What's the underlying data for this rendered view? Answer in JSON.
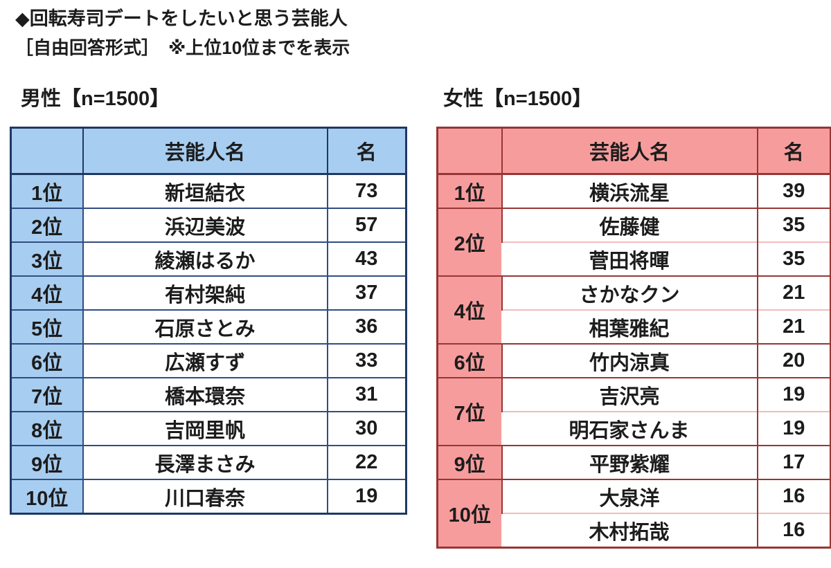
{
  "title": "◆回転寿司デートをしたいと思う芸能人",
  "subtitle": "［自由回答形式］　※上位10位までを表示",
  "colors": {
    "male_fill": "#a7cdf0",
    "male_border": "#1f3864",
    "male_line": "#2f4d80",
    "female_fill": "#f79c9c",
    "female_border": "#963634",
    "female_light_separator": "#f0bcbc",
    "text": "#1c1c1c",
    "background": "#ffffff"
  },
  "tables": [
    {
      "id": "male",
      "label": "男性【n=1500】",
      "columns": {
        "rank": "",
        "name": "芸能人名",
        "count": "名"
      },
      "rows": [
        {
          "rank": "1位",
          "entries": [
            {
              "name": "新垣結衣",
              "count": "73"
            }
          ]
        },
        {
          "rank": "2位",
          "entries": [
            {
              "name": "浜辺美波",
              "count": "57"
            }
          ]
        },
        {
          "rank": "3位",
          "entries": [
            {
              "name": "綾瀬はるか",
              "count": "43"
            }
          ]
        },
        {
          "rank": "4位",
          "entries": [
            {
              "name": "有村架純",
              "count": "37"
            }
          ]
        },
        {
          "rank": "5位",
          "entries": [
            {
              "name": "石原さとみ",
              "count": "36"
            }
          ]
        },
        {
          "rank": "6位",
          "entries": [
            {
              "name": "広瀬すず",
              "count": "33"
            }
          ]
        },
        {
          "rank": "7位",
          "entries": [
            {
              "name": "橋本環奈",
              "count": "31"
            }
          ]
        },
        {
          "rank": "8位",
          "entries": [
            {
              "name": "吉岡里帆",
              "count": "30"
            }
          ]
        },
        {
          "rank": "9位",
          "entries": [
            {
              "name": "長澤まさみ",
              "count": "22"
            }
          ]
        },
        {
          "rank": "10位",
          "entries": [
            {
              "name": "川口春奈",
              "count": "19"
            }
          ]
        }
      ]
    },
    {
      "id": "female",
      "label": "女性【n=1500】",
      "columns": {
        "rank": "",
        "name": "芸能人名",
        "count": "名"
      },
      "rows": [
        {
          "rank": "1位",
          "entries": [
            {
              "name": "横浜流星",
              "count": "39"
            }
          ]
        },
        {
          "rank": "2位",
          "entries": [
            {
              "name": "佐藤健",
              "count": "35"
            },
            {
              "name": "菅田将暉",
              "count": "35"
            }
          ]
        },
        {
          "rank": "4位",
          "entries": [
            {
              "name": "さかなクン",
              "count": "21"
            },
            {
              "name": "相葉雅紀",
              "count": "21"
            }
          ]
        },
        {
          "rank": "6位",
          "entries": [
            {
              "name": "竹内涼真",
              "count": "20"
            }
          ]
        },
        {
          "rank": "7位",
          "entries": [
            {
              "name": "吉沢亮",
              "count": "19"
            },
            {
              "name": "明石家さんま",
              "count": "19"
            }
          ]
        },
        {
          "rank": "9位",
          "entries": [
            {
              "name": "平野紫耀",
              "count": "17"
            }
          ]
        },
        {
          "rank": "10位",
          "entries": [
            {
              "name": "大泉洋",
              "count": "16"
            },
            {
              "name": "木村拓哉",
              "count": "16"
            }
          ]
        }
      ]
    }
  ]
}
